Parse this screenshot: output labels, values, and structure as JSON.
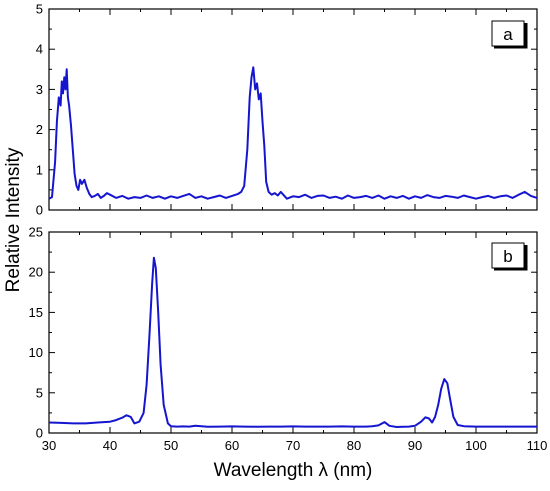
{
  "chart_data": [
    {
      "panel": "a",
      "type": "line",
      "panel_label": "a",
      "xlabel": "Wavelength λ (nm)",
      "ylabel": "Relative Intensity",
      "xlim": [
        30,
        110
      ],
      "ylim": [
        0,
        5
      ],
      "x_ticks": [
        30,
        40,
        50,
        60,
        70,
        80,
        90,
        100,
        110
      ],
      "y_ticks": [
        0,
        1,
        2,
        3,
        4,
        5
      ],
      "grid": false,
      "line_color": "#1515d0",
      "series": [
        {
          "x": [
            30,
            30.5,
            31,
            31.3,
            31.6,
            31.9,
            32.1,
            32.3,
            32.5,
            32.7,
            32.9,
            33.1,
            33.3,
            33.6,
            33.9,
            34.2,
            34.5,
            34.8,
            35.1,
            35.4,
            35.8,
            36.2,
            36.6,
            37,
            37.5,
            38,
            38.5,
            39,
            39.5,
            40,
            41,
            42,
            43,
            44,
            45,
            46,
            47,
            48,
            49,
            50,
            51,
            52,
            53,
            54,
            55,
            56,
            57,
            58,
            59,
            60,
            61,
            61.5,
            62,
            62.5,
            62.9,
            63.2,
            63.5,
            63.8,
            64.1,
            64.4,
            64.7,
            65,
            65.3,
            65.6,
            66,
            66.5,
            67,
            67.5,
            68,
            69,
            70,
            71,
            72,
            73,
            74,
            75,
            76,
            77,
            78,
            79,
            80,
            81,
            82,
            83,
            84,
            85,
            86,
            87,
            88,
            89,
            90,
            91,
            92,
            93,
            94,
            95,
            96,
            97,
            98,
            99,
            100,
            101,
            102,
            103,
            104,
            105,
            106,
            107,
            108,
            109,
            110
          ],
          "y": [
            0.28,
            0.32,
            1.2,
            2.2,
            2.8,
            2.6,
            3.2,
            2.9,
            3.3,
            3.0,
            3.5,
            2.8,
            2.6,
            2.1,
            1.5,
            0.9,
            0.6,
            0.5,
            0.75,
            0.65,
            0.75,
            0.55,
            0.4,
            0.32,
            0.35,
            0.4,
            0.3,
            0.35,
            0.42,
            0.38,
            0.3,
            0.35,
            0.28,
            0.32,
            0.3,
            0.36,
            0.3,
            0.34,
            0.28,
            0.34,
            0.3,
            0.35,
            0.4,
            0.3,
            0.34,
            0.28,
            0.32,
            0.36,
            0.3,
            0.35,
            0.4,
            0.45,
            0.6,
            1.5,
            2.8,
            3.3,
            3.55,
            3.0,
            3.15,
            2.75,
            2.9,
            2.2,
            1.6,
            0.7,
            0.45,
            0.38,
            0.42,
            0.36,
            0.45,
            0.28,
            0.34,
            0.32,
            0.38,
            0.3,
            0.35,
            0.36,
            0.3,
            0.33,
            0.28,
            0.36,
            0.3,
            0.32,
            0.35,
            0.3,
            0.36,
            0.28,
            0.34,
            0.3,
            0.35,
            0.28,
            0.34,
            0.3,
            0.37,
            0.32,
            0.3,
            0.35,
            0.33,
            0.3,
            0.36,
            0.32,
            0.28,
            0.32,
            0.35,
            0.3,
            0.34,
            0.36,
            0.3,
            0.38,
            0.45,
            0.35,
            0.3
          ]
        }
      ]
    },
    {
      "panel": "b",
      "type": "line",
      "panel_label": "b",
      "xlabel": "Wavelength λ (nm)",
      "ylabel": "Relative Intensity",
      "xlim": [
        30,
        110
      ],
      "ylim": [
        0,
        25
      ],
      "x_ticks": [
        30,
        40,
        50,
        60,
        70,
        80,
        90,
        100,
        110
      ],
      "y_ticks": [
        0,
        5,
        10,
        15,
        20,
        25
      ],
      "grid": false,
      "line_color": "#1515d0",
      "series": [
        {
          "x": [
            30,
            32,
            34,
            36,
            38,
            40,
            41,
            42,
            42.7,
            43.4,
            44,
            44.8,
            45.5,
            46,
            46.5,
            46.9,
            47.2,
            47.5,
            47.9,
            48.3,
            48.8,
            49.5,
            50,
            51,
            52,
            53,
            54,
            56,
            58,
            60,
            62,
            64,
            66,
            68,
            70,
            72,
            74,
            76,
            78,
            80,
            82,
            83,
            84,
            85,
            85.8,
            87,
            88,
            89,
            90,
            91,
            91.7,
            92.3,
            92.8,
            93.3,
            93.8,
            94.3,
            94.8,
            95.3,
            95.8,
            96.3,
            97,
            98,
            100,
            102,
            104,
            106,
            108,
            110
          ],
          "y": [
            1.3,
            1.25,
            1.2,
            1.2,
            1.3,
            1.4,
            1.6,
            1.9,
            2.2,
            2.0,
            1.2,
            1.4,
            2.5,
            6.0,
            12.5,
            18.5,
            21.8,
            20.5,
            15.0,
            8.5,
            3.5,
            1.2,
            0.85,
            0.8,
            0.82,
            0.8,
            0.9,
            0.78,
            0.8,
            0.82,
            0.8,
            0.78,
            0.8,
            0.8,
            0.82,
            0.8,
            0.8,
            0.8,
            0.82,
            0.8,
            0.8,
            0.85,
            0.95,
            1.35,
            0.9,
            0.75,
            0.78,
            0.8,
            0.9,
            1.4,
            1.95,
            1.8,
            1.3,
            2.0,
            3.5,
            5.5,
            6.7,
            6.2,
            4.0,
            2.0,
            1.0,
            0.85,
            0.8,
            0.8,
            0.8,
            0.8,
            0.8,
            0.8
          ]
        }
      ]
    }
  ]
}
